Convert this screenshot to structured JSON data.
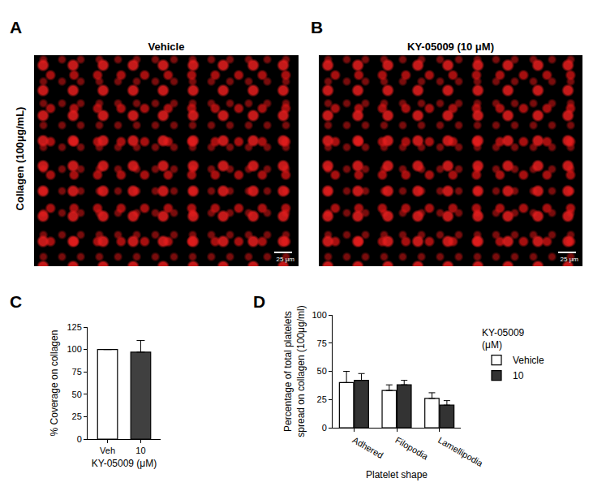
{
  "figure": {
    "row_label": "Collagen (100μg/mL)",
    "images": [
      {
        "letter": "A",
        "title": "Vehicle",
        "scale_bar": "25 μm"
      },
      {
        "letter": "B",
        "title": "KY-05009 (10 μM)",
        "scale_bar": "25 μm"
      }
    ]
  },
  "chart_data": [
    {
      "letter": "C",
      "type": "bar",
      "categories": [
        "Veh",
        "10"
      ],
      "values": [
        100,
        97
      ],
      "error": [
        0,
        13
      ],
      "colors": [
        "#ffffff",
        "#404040"
      ],
      "ylim": [
        0,
        125
      ],
      "yticks": [
        0,
        25,
        50,
        75,
        100,
        125
      ],
      "y_label": "% Coverage on collagen",
      "x_label": "KY-05009 (μM)"
    },
    {
      "letter": "D",
      "type": "bar",
      "categories": [
        "Adhered",
        "Filopodia",
        "Lamellipodia"
      ],
      "series": [
        {
          "name": "Vehicle",
          "color": "#ffffff",
          "values": [
            40,
            33,
            26
          ],
          "error": [
            10,
            5,
            5
          ]
        },
        {
          "name": "10",
          "color": "#333333",
          "values": [
            42,
            38,
            20
          ],
          "error": [
            6,
            4,
            4
          ]
        }
      ],
      "ylim": [
        0,
        100
      ],
      "yticks": [
        0,
        25,
        50,
        75,
        100
      ],
      "y_label": "Percentage of total platelets spread on collagen (100μg/ml)",
      "x_label": "Platelet shape",
      "legend_title": "KY-05009 (μM)",
      "legend": "right"
    }
  ]
}
